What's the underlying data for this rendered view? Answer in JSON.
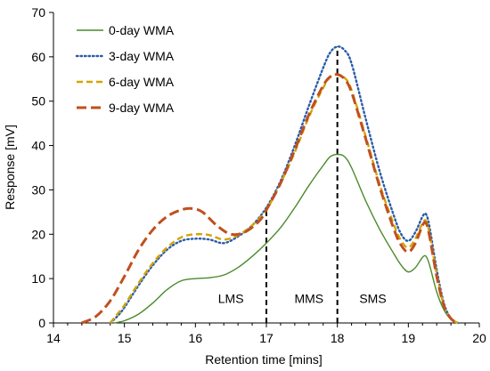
{
  "chart_data": {
    "type": "line",
    "title": "",
    "xlabel": "Retention time [mins]",
    "ylabel": "Response [mV]",
    "xlim": [
      14,
      20
    ],
    "ylim": [
      0,
      70
    ],
    "xticks": [
      14,
      15,
      16,
      17,
      18,
      19,
      20
    ],
    "yticks": [
      0,
      10,
      20,
      30,
      40,
      50,
      60,
      70
    ],
    "grid": false,
    "legend_position": "top-left",
    "series": [
      {
        "name": "0-day WMA",
        "color": "#4a8a2a",
        "dash": "solid",
        "x": [
          14.85,
          15.0,
          15.2,
          15.4,
          15.6,
          15.8,
          16.0,
          16.2,
          16.4,
          16.6,
          16.8,
          17.0,
          17.2,
          17.4,
          17.6,
          17.8,
          17.9,
          18.0,
          18.1,
          18.2,
          18.4,
          18.6,
          18.8,
          18.9,
          19.0,
          19.1,
          19.2,
          19.25,
          19.3,
          19.4,
          19.5,
          19.6,
          19.7
        ],
        "y": [
          0,
          0.5,
          2.0,
          4.5,
          7.5,
          9.5,
          10.0,
          10.2,
          10.8,
          12.5,
          15.0,
          18.0,
          21.5,
          26.0,
          31.0,
          35.5,
          37.5,
          38.0,
          37.5,
          35.0,
          27.5,
          21.0,
          15.5,
          13.0,
          11.5,
          12.5,
          14.8,
          15.0,
          13.0,
          7.0,
          3.0,
          0.8,
          0
        ]
      },
      {
        "name": "3-day WMA",
        "color": "#2a5ca8",
        "dash": "dotted",
        "x": [
          14.8,
          14.9,
          15.0,
          15.2,
          15.4,
          15.6,
          15.8,
          16.0,
          16.2,
          16.4,
          16.6,
          16.8,
          17.0,
          17.2,
          17.4,
          17.6,
          17.8,
          17.9,
          18.0,
          18.1,
          18.2,
          18.4,
          18.6,
          18.8,
          18.9,
          19.0,
          19.1,
          19.2,
          19.25,
          19.3,
          19.4,
          19.5,
          19.6,
          19.7
        ],
        "y": [
          0,
          1.5,
          3.5,
          8.5,
          13.0,
          16.5,
          18.5,
          19.0,
          18.8,
          18.0,
          19.5,
          22.0,
          26.0,
          32.0,
          40.0,
          49.0,
          57.5,
          61.0,
          62.3,
          61.5,
          58.5,
          46.0,
          34.0,
          24.0,
          20.0,
          18.5,
          20.5,
          24.0,
          24.5,
          21.5,
          12.0,
          4.5,
          1.0,
          0
        ]
      },
      {
        "name": "6-day WMA",
        "color": "#d4a300",
        "dash": "dashed",
        "x": [
          14.8,
          14.9,
          15.0,
          15.2,
          15.4,
          15.6,
          15.8,
          16.0,
          16.2,
          16.4,
          16.6,
          16.8,
          17.0,
          17.2,
          17.4,
          17.6,
          17.8,
          17.9,
          18.0,
          18.1,
          18.2,
          18.4,
          18.6,
          18.8,
          18.9,
          19.0,
          19.1,
          19.2,
          19.25,
          19.3,
          19.4,
          19.5,
          19.6,
          19.7
        ],
        "y": [
          0,
          2.0,
          4.0,
          9.0,
          13.5,
          17.0,
          19.3,
          20.0,
          19.8,
          18.8,
          19.8,
          22.0,
          25.5,
          31.5,
          38.5,
          46.5,
          53.0,
          55.5,
          56.0,
          55.3,
          52.5,
          42.0,
          31.0,
          22.0,
          18.5,
          17.0,
          19.0,
          22.5,
          23.0,
          20.0,
          11.0,
          4.0,
          1.0,
          0
        ]
      },
      {
        "name": "9-day WMA",
        "color": "#c0501e",
        "dash": "longdash",
        "x": [
          14.4,
          14.6,
          14.8,
          15.0,
          15.2,
          15.4,
          15.6,
          15.8,
          15.95,
          16.1,
          16.3,
          16.5,
          16.7,
          16.9,
          17.0,
          17.2,
          17.4,
          17.6,
          17.8,
          17.9,
          18.0,
          18.1,
          18.2,
          18.4,
          18.6,
          18.8,
          18.9,
          19.0,
          19.1,
          19.2,
          19.25,
          19.3,
          19.4,
          19.5,
          19.6,
          19.7
        ],
        "y": [
          0,
          1.5,
          5.0,
          10.5,
          16.5,
          21.0,
          24.0,
          25.5,
          25.8,
          25.0,
          22.0,
          20.0,
          20.5,
          23.0,
          25.5,
          31.5,
          39.0,
          47.0,
          53.5,
          55.5,
          56.0,
          55.0,
          52.0,
          41.5,
          30.5,
          21.0,
          17.5,
          16.0,
          18.0,
          22.0,
          22.5,
          19.5,
          10.5,
          4.0,
          1.0,
          0
        ]
      }
    ],
    "vlines": [
      {
        "x": 17.0,
        "y_top": 25.5
      },
      {
        "x": 18.0,
        "y_top": 62.3
      }
    ],
    "region_labels": [
      {
        "text": "LMS",
        "x": 16.5,
        "y": 4.5
      },
      {
        "text": "MMS",
        "x": 17.6,
        "y": 4.5
      },
      {
        "text": "SMS",
        "x": 18.5,
        "y": 4.5
      }
    ]
  }
}
